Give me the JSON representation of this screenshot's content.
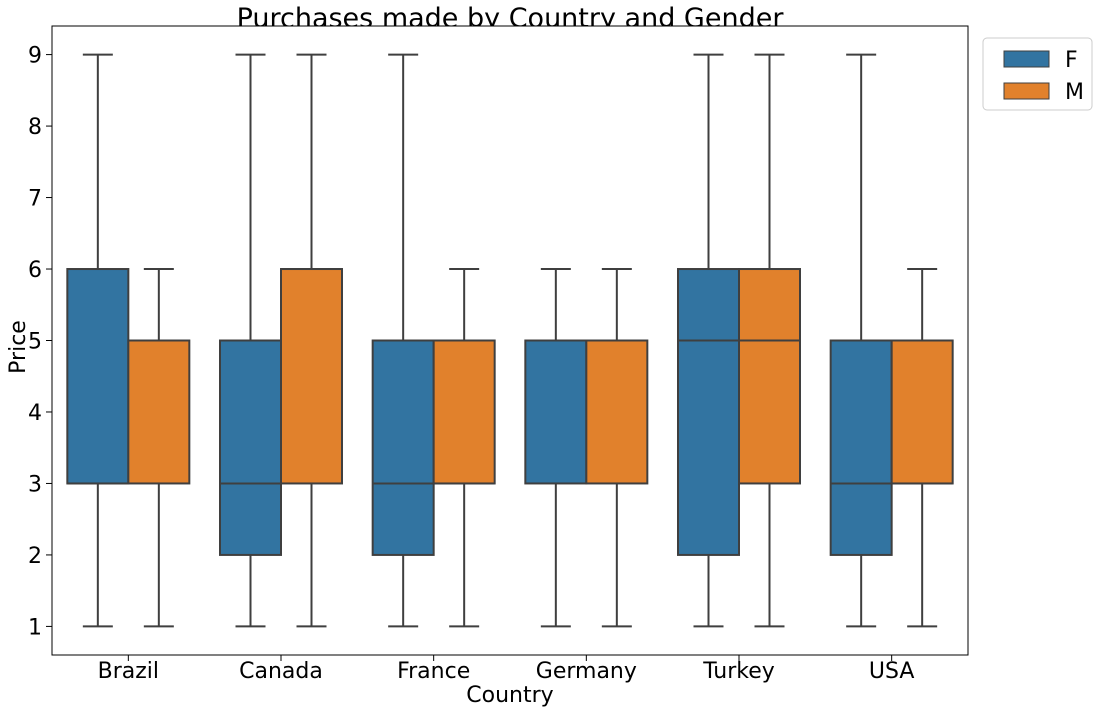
{
  "chart_data": {
    "type": "box",
    "title": "Purchases made by Country and Gender",
    "xlabel": "Country",
    "ylabel": "Price",
    "ylim": [
      0.6,
      9.4
    ],
    "yticks": [
      1,
      2,
      3,
      4,
      5,
      6,
      7,
      8,
      9
    ],
    "grid": false,
    "legend_placement": "outside top-right",
    "categories": [
      "Brazil",
      "Canada",
      "France",
      "Germany",
      "Turkey",
      "USA"
    ],
    "series": [
      {
        "name": "F",
        "color": "#3274a1",
        "boxes": [
          {
            "min": 1,
            "q1": 3,
            "median": 3,
            "q3": 6,
            "max": 9
          },
          {
            "min": 1,
            "q1": 2,
            "median": 3,
            "q3": 5,
            "max": 9
          },
          {
            "min": 1,
            "q1": 2,
            "median": 3,
            "q3": 5,
            "max": 9
          },
          {
            "min": 1,
            "q1": 3,
            "median": 5,
            "q3": 5,
            "max": 6
          },
          {
            "min": 1,
            "q1": 2,
            "median": 5,
            "q3": 6,
            "max": 9
          },
          {
            "min": 1,
            "q1": 2,
            "median": 3,
            "q3": 5,
            "max": 9
          }
        ]
      },
      {
        "name": "M",
        "color": "#e1812c",
        "boxes": [
          {
            "min": 1,
            "q1": 3,
            "median": 5,
            "q3": 5,
            "max": 6
          },
          {
            "min": 1,
            "q1": 3,
            "median": 6,
            "q3": 6,
            "max": 9
          },
          {
            "min": 1,
            "q1": 3,
            "median": 3,
            "q3": 5,
            "max": 6
          },
          {
            "min": 1,
            "q1": 3,
            "median": 5,
            "q3": 5,
            "max": 6
          },
          {
            "min": 1,
            "q1": 3,
            "median": 5,
            "q3": 6,
            "max": 9
          },
          {
            "min": 1,
            "q1": 3,
            "median": 3,
            "q3": 5,
            "max": 6
          }
        ]
      }
    ]
  }
}
